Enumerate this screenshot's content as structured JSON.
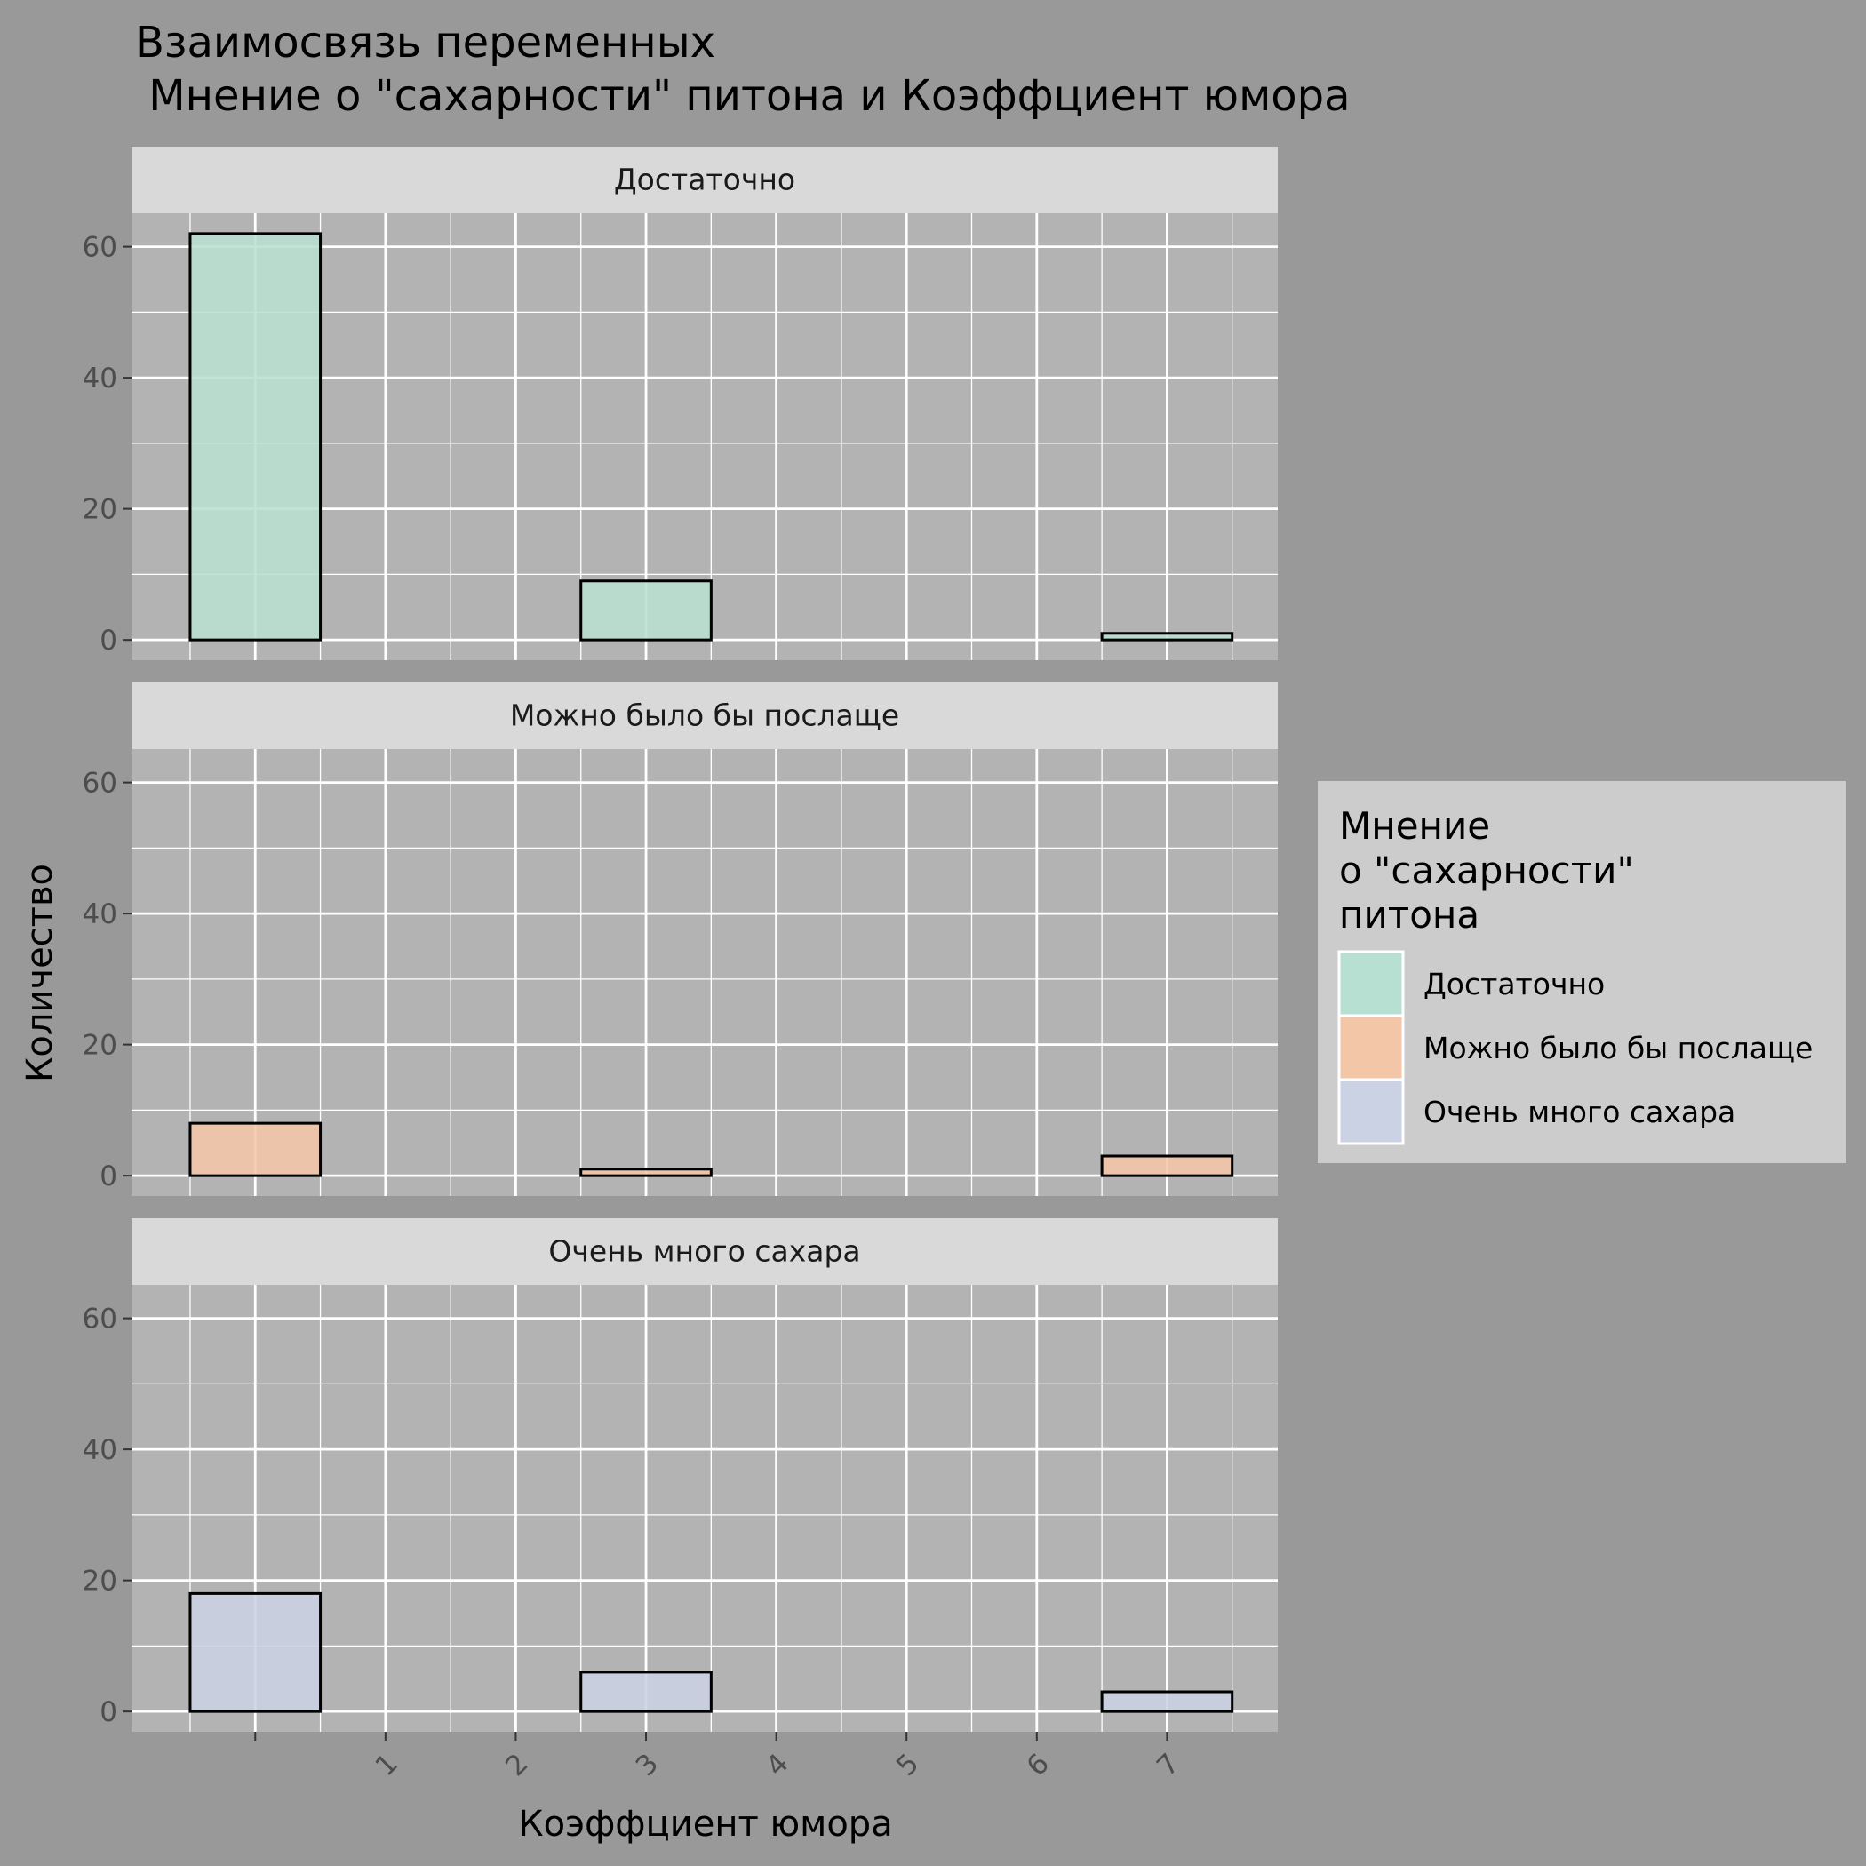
{
  "chart_data": {
    "type": "bar",
    "title_line1": "Взаимосвязь переменных",
    "title_line2": " Мнение о \"сахарности\" питона и Коэффциент юмора",
    "xlabel": "Коэффциент юмора",
    "ylabel": "Количество",
    "x_ticks": [
      1,
      2,
      3,
      4,
      5,
      6,
      7
    ],
    "x_range": [
      -0.95,
      7.85
    ],
    "ylim": [
      -3.1,
      65.1
    ],
    "y_ticks": [
      0,
      20,
      40,
      60
    ],
    "bins": [
      {
        "x0": -0.5,
        "x1": 0.5
      },
      {
        "x0": 0.5,
        "x1": 1.5
      },
      {
        "x0": 1.5,
        "x1": 2.5
      },
      {
        "x0": 2.5,
        "x1": 3.5
      },
      {
        "x0": 3.5,
        "x1": 4.5
      },
      {
        "x0": 4.5,
        "x1": 5.5
      },
      {
        "x0": 5.5,
        "x1": 6.5
      },
      {
        "x0": 6.5,
        "x1": 7.5
      }
    ],
    "grid": true,
    "legend_position": "right",
    "legend_title_lines": [
      "Мнение",
      "о \"сахарности\"",
      "питона"
    ],
    "series": [
      {
        "name": "Достаточно",
        "color": "#B8E0D2",
        "values": [
          62,
          0,
          0,
          9,
          0,
          0,
          0,
          1
        ]
      },
      {
        "name": "Можно было бы послаще",
        "color": "#F3C6A8",
        "values": [
          8,
          0,
          0,
          1,
          0,
          0,
          0,
          3
        ]
      },
      {
        "name": "Очень много сахара",
        "color": "#CBD2E4",
        "values": [
          18,
          0,
          0,
          6,
          0,
          0,
          0,
          3
        ]
      }
    ]
  },
  "colors": {
    "plot_background": "#999999",
    "panel_background": "#B3B3B3",
    "strip_background": "#D9D9D9",
    "legend_background": "#CCCCCC",
    "grid": "#FFFFFF"
  }
}
